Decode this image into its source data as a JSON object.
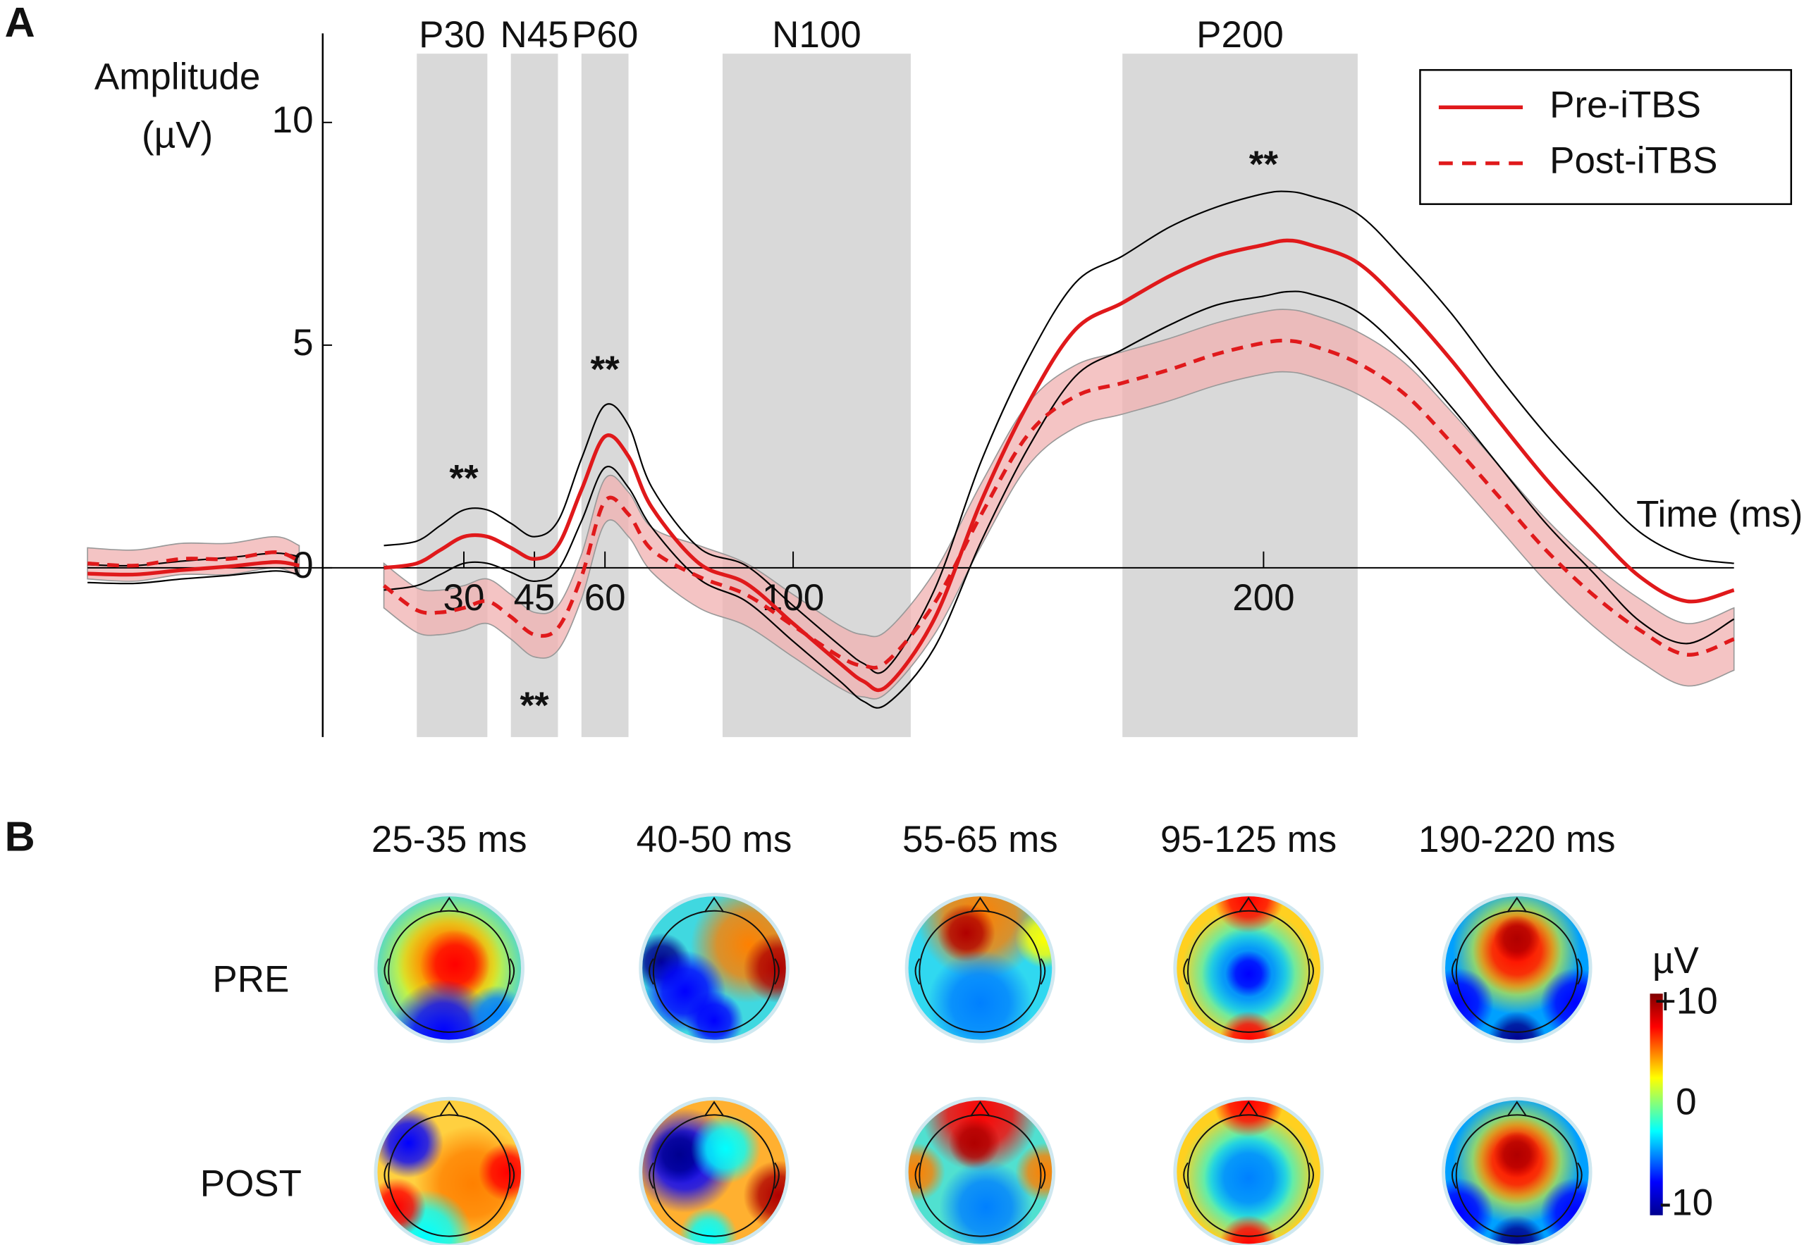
{
  "chart_data": [
    {
      "type": "line",
      "panel_label": "A",
      "y_label_lines": [
        "Amplitude",
        "(µV)"
      ],
      "x_label": "Time (ms)",
      "xlim": [
        -50,
        300
      ],
      "ylim": [
        -3.8,
        12
      ],
      "xticks": [
        30,
        45,
        60,
        100,
        200
      ],
      "yticks": [
        0,
        5,
        10
      ],
      "windows": [
        {
          "label": "P30",
          "start": 20,
          "end": 35
        },
        {
          "label": "N45",
          "start": 40,
          "end": 50
        },
        {
          "label": "P60",
          "start": 55,
          "end": 65
        },
        {
          "label": "N100",
          "start": 85,
          "end": 125
        },
        {
          "label": "P200",
          "start": 170,
          "end": 220
        }
      ],
      "x": [
        -50,
        -40,
        -30,
        -20,
        -10,
        -5,
        5,
        13,
        20,
        25,
        30,
        35,
        40,
        45,
        50,
        55,
        60,
        65,
        70,
        80,
        90,
        100,
        110,
        115,
        120,
        130,
        140,
        150,
        160,
        170,
        180,
        190,
        200,
        205,
        210,
        220,
        230,
        240,
        250,
        260,
        270,
        280,
        290,
        300
      ],
      "series": [
        {
          "name": "Pre-iTBS",
          "color": "#e0191b",
          "dashed": false,
          "band_color": "#000000",
          "band_style": "lines",
          "values": [
            -0.13,
            -0.15,
            -0.05,
            0.03,
            0.13,
            0.05,
            null,
            0,
            0.1,
            0.4,
            0.7,
            0.7,
            0.45,
            0.2,
            0.5,
            1.75,
            2.95,
            2.5,
            1.35,
            0.1,
            -0.35,
            -1.25,
            -2.15,
            -2.55,
            -2.65,
            -1.15,
            1.5,
            3.7,
            5.35,
            5.95,
            6.55,
            7.0,
            7.25,
            7.35,
            7.25,
            6.85,
            5.85,
            4.65,
            3.3,
            2.0,
            0.85,
            -0.2,
            -0.75,
            -0.5
          ],
          "upper": [
            0.07,
            0.05,
            0.15,
            0.23,
            0.33,
            0.25,
            null,
            0.5,
            0.6,
            0.95,
            1.3,
            1.3,
            1.0,
            0.7,
            1.05,
            2.45,
            3.65,
            3.2,
            1.8,
            0.45,
            0.05,
            -0.85,
            -1.75,
            -2.15,
            -2.25,
            -0.5,
            2.4,
            4.7,
            6.4,
            7.0,
            7.65,
            8.1,
            8.4,
            8.45,
            8.35,
            7.95,
            6.9,
            5.7,
            4.3,
            3.0,
            1.85,
            0.8,
            0.25,
            0.1
          ],
          "lower": [
            -0.33,
            -0.35,
            -0.25,
            -0.17,
            -0.07,
            -0.15,
            null,
            -0.5,
            -0.4,
            -0.15,
            0.1,
            0.1,
            -0.1,
            -0.3,
            -0.05,
            1.05,
            2.25,
            1.8,
            0.9,
            -0.25,
            -0.75,
            -1.65,
            -2.55,
            -3.0,
            -3.05,
            -1.8,
            0.6,
            2.7,
            4.3,
            4.9,
            5.45,
            5.9,
            6.1,
            6.2,
            6.15,
            5.75,
            4.8,
            3.6,
            2.3,
            1.0,
            -0.1,
            -1.2,
            -1.7,
            -1.15
          ]
        },
        {
          "name": "Post-iTBS",
          "color": "#e0191b",
          "dashed": true,
          "band_color": "#f0b0b0",
          "band_style": "fill",
          "values": [
            0.1,
            0.05,
            0.2,
            0.2,
            0.35,
            0.15,
            null,
            -0.4,
            -0.95,
            -1.0,
            -0.9,
            -0.75,
            -1.1,
            -1.5,
            -1.35,
            -0.2,
            1.5,
            1.2,
            0.4,
            -0.2,
            -0.6,
            -1.3,
            -2.0,
            -2.2,
            -2.1,
            -0.8,
            1.2,
            3.0,
            3.85,
            4.15,
            4.45,
            4.8,
            5.05,
            5.1,
            5.0,
            4.6,
            3.9,
            2.8,
            1.6,
            0.4,
            -0.6,
            -1.4,
            -1.95,
            -1.6
          ],
          "upper": [
            0.45,
            0.4,
            0.55,
            0.55,
            0.7,
            0.5,
            null,
            0.1,
            -0.45,
            -0.5,
            -0.4,
            -0.25,
            -0.6,
            -1.0,
            -0.85,
            0.3,
            2.0,
            1.7,
            0.9,
            0.5,
            0.1,
            -0.6,
            -1.3,
            -1.5,
            -1.4,
            -0.1,
            1.9,
            3.7,
            4.55,
            4.85,
            5.15,
            5.5,
            5.75,
            5.8,
            5.7,
            5.3,
            4.6,
            3.5,
            2.3,
            1.1,
            0.1,
            -0.7,
            -1.25,
            -0.9
          ],
          "lower": [
            -0.25,
            -0.3,
            -0.15,
            -0.15,
            0.0,
            -0.2,
            null,
            -0.9,
            -1.45,
            -1.5,
            -1.4,
            -1.25,
            -1.6,
            -2.0,
            -1.85,
            -0.7,
            1.0,
            0.7,
            -0.1,
            -0.9,
            -1.3,
            -2.0,
            -2.7,
            -2.9,
            -2.8,
            -1.5,
            0.5,
            2.3,
            3.15,
            3.45,
            3.75,
            4.1,
            4.35,
            4.4,
            4.3,
            3.9,
            3.2,
            2.1,
            0.9,
            -0.3,
            -1.3,
            -2.1,
            -2.65,
            -2.3
          ]
        }
      ],
      "annotations": [
        {
          "text": "**",
          "x": 30,
          "y": 1.95
        },
        {
          "text": "**",
          "x": 45,
          "y": -3.15
        },
        {
          "text": "**",
          "x": 60,
          "y": 4.4
        },
        {
          "text": "**",
          "x": 200,
          "y": 9.0
        }
      ],
      "legend": "upper right"
    },
    {
      "type": "topomap",
      "panel_label": "B",
      "columns": [
        "25-35 ms",
        "40-50 ms",
        "55-65 ms",
        "95-125 ms",
        "190-220 ms"
      ],
      "rows": [
        "PRE",
        "POST"
      ],
      "colorbar_label": "µV",
      "clim": [
        -11,
        11
      ],
      "cticks": [
        {
          "value": 10,
          "label": "+10"
        },
        0,
        -10
      ]
    }
  ]
}
